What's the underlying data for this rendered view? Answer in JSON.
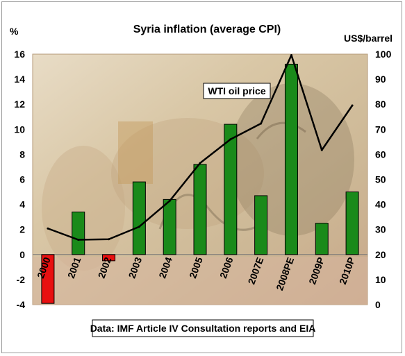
{
  "chart_data": {
    "type": "bar+line",
    "title": "Syria inflation (average CPI)",
    "left_axis_label": "%",
    "right_axis_label": "US$/barrel",
    "categories": [
      "2000",
      "2001",
      "2002",
      "2003",
      "2004",
      "2005",
      "2006",
      "2007E",
      "2008PE",
      "2009P",
      "2010P"
    ],
    "left_ylim": [
      -4,
      16
    ],
    "left_ticks": [
      -4,
      -2,
      0,
      2,
      4,
      6,
      8,
      10,
      12,
      14,
      16
    ],
    "right_ylim": [
      0,
      100
    ],
    "right_ticks": [
      0,
      10,
      20,
      30,
      40,
      50,
      60,
      70,
      80,
      90,
      100
    ],
    "series": [
      {
        "name": "",
        "type": "bar",
        "axis": "left",
        "values": [
          -3.9,
          3.4,
          -0.5,
          5.8,
          4.4,
          7.2,
          10.4,
          4.7,
          15.2,
          2.5,
          5.0
        ]
      },
      {
        "name": "WTI oil price",
        "type": "line",
        "axis": "right",
        "values": [
          30.4,
          25.9,
          26.1,
          31.1,
          41.4,
          56.5,
          66.0,
          72.3,
          99.6,
          61.7,
          79.5
        ]
      }
    ],
    "positive_bar_color": "#1a8a1a",
    "negative_bar_color": "#e81010",
    "line_color": "#000000",
    "source_note": "Data: IMF Article IV Consultation reports and EIA",
    "grid": false
  }
}
